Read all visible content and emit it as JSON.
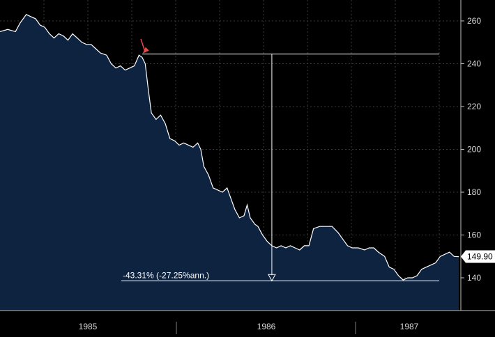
{
  "chart_data": {
    "type": "area",
    "title": "",
    "xlabel": "",
    "ylabel": "",
    "ylim": [
      125,
      268
    ],
    "x_range": [
      1984.33,
      1987.6
    ],
    "x_ticks": [
      {
        "label": "1985",
        "at": 1985.0
      },
      {
        "label": "1986",
        "at": 1986.0
      },
      {
        "label": "1987",
        "at": 1987.0
      }
    ],
    "y_ticks": [
      140,
      160,
      180,
      200,
      220,
      240,
      260
    ],
    "grid": true,
    "colors": {
      "background": "#000000",
      "area_fill": "#0d2340",
      "line": "#ffffff",
      "grid": "#3a3a3a",
      "arrow": "#e84a4a",
      "last_label_bg": "#ffffff"
    },
    "series": [
      {
        "values": [
          [
            1984.33,
            255
          ],
          [
            1984.38,
            256
          ],
          [
            1984.43,
            255
          ],
          [
            1984.46,
            259
          ],
          [
            1984.5,
            263
          ],
          [
            1984.53,
            262
          ],
          [
            1984.56,
            261
          ],
          [
            1984.59,
            258
          ],
          [
            1984.62,
            257
          ],
          [
            1984.65,
            254
          ],
          [
            1984.68,
            252
          ],
          [
            1984.71,
            254
          ],
          [
            1984.74,
            253
          ],
          [
            1984.77,
            251
          ],
          [
            1984.8,
            254
          ],
          [
            1984.83,
            252
          ],
          [
            1984.86,
            250
          ],
          [
            1984.89,
            249
          ],
          [
            1984.92,
            249
          ],
          [
            1984.95,
            247
          ],
          [
            1984.98,
            245
          ],
          [
            1985.02,
            244
          ],
          [
            1985.05,
            240
          ],
          [
            1985.08,
            238
          ],
          [
            1985.11,
            239
          ],
          [
            1985.14,
            237
          ],
          [
            1985.17,
            238
          ],
          [
            1985.2,
            239
          ],
          [
            1985.23,
            244
          ],
          [
            1985.25,
            243
          ],
          [
            1985.27,
            240
          ],
          [
            1985.29,
            228
          ],
          [
            1985.31,
            217
          ],
          [
            1985.34,
            214
          ],
          [
            1985.37,
            216
          ],
          [
            1985.4,
            212
          ],
          [
            1985.43,
            205
          ],
          [
            1985.46,
            204
          ],
          [
            1985.49,
            202
          ],
          [
            1985.52,
            203
          ],
          [
            1985.55,
            202
          ],
          [
            1985.58,
            201
          ],
          [
            1985.61,
            203
          ],
          [
            1985.63,
            200
          ],
          [
            1985.65,
            192
          ],
          [
            1985.68,
            188
          ],
          [
            1985.71,
            182
          ],
          [
            1985.74,
            181
          ],
          [
            1985.77,
            180
          ],
          [
            1985.8,
            182
          ],
          [
            1985.82,
            178
          ],
          [
            1985.85,
            172
          ],
          [
            1985.88,
            168
          ],
          [
            1985.91,
            169
          ],
          [
            1985.93,
            174
          ],
          [
            1985.95,
            168
          ],
          [
            1985.98,
            165
          ],
          [
            1986.0,
            164
          ],
          [
            1986.03,
            160
          ],
          [
            1986.06,
            157
          ],
          [
            1986.09,
            155
          ],
          [
            1986.12,
            154
          ],
          [
            1986.15,
            155
          ],
          [
            1986.18,
            154
          ],
          [
            1986.21,
            155
          ],
          [
            1986.24,
            154
          ],
          [
            1986.27,
            153
          ],
          [
            1986.3,
            155
          ],
          [
            1986.33,
            155
          ],
          [
            1986.36,
            163
          ],
          [
            1986.4,
            164
          ],
          [
            1986.44,
            164
          ],
          [
            1986.48,
            164
          ],
          [
            1986.52,
            161
          ],
          [
            1986.55,
            158
          ],
          [
            1986.58,
            155
          ],
          [
            1986.61,
            154
          ],
          [
            1986.65,
            154
          ],
          [
            1986.69,
            153
          ],
          [
            1986.72,
            154
          ],
          [
            1986.75,
            154
          ],
          [
            1986.78,
            152
          ],
          [
            1986.82,
            150
          ],
          [
            1986.85,
            145
          ],
          [
            1986.88,
            144
          ],
          [
            1986.91,
            141
          ],
          [
            1986.94,
            139
          ],
          [
            1986.97,
            140
          ],
          [
            1987.0,
            140
          ],
          [
            1987.03,
            141
          ],
          [
            1987.06,
            144
          ],
          [
            1987.09,
            145
          ],
          [
            1987.12,
            146
          ],
          [
            1987.15,
            147
          ],
          [
            1987.18,
            150
          ],
          [
            1987.21,
            151
          ],
          [
            1987.24,
            152
          ],
          [
            1987.27,
            150
          ],
          [
            1987.3,
            149.9
          ]
        ]
      }
    ],
    "last_value": 149.9,
    "last_value_label": "149.90",
    "drawdown": {
      "peak_value": 244.5,
      "trough_value": 138.6,
      "start_x": 1985.25,
      "measure_x": 1986.09,
      "end_x": 1987.05,
      "label": "-43.31% (-27.25%ann.)"
    }
  }
}
